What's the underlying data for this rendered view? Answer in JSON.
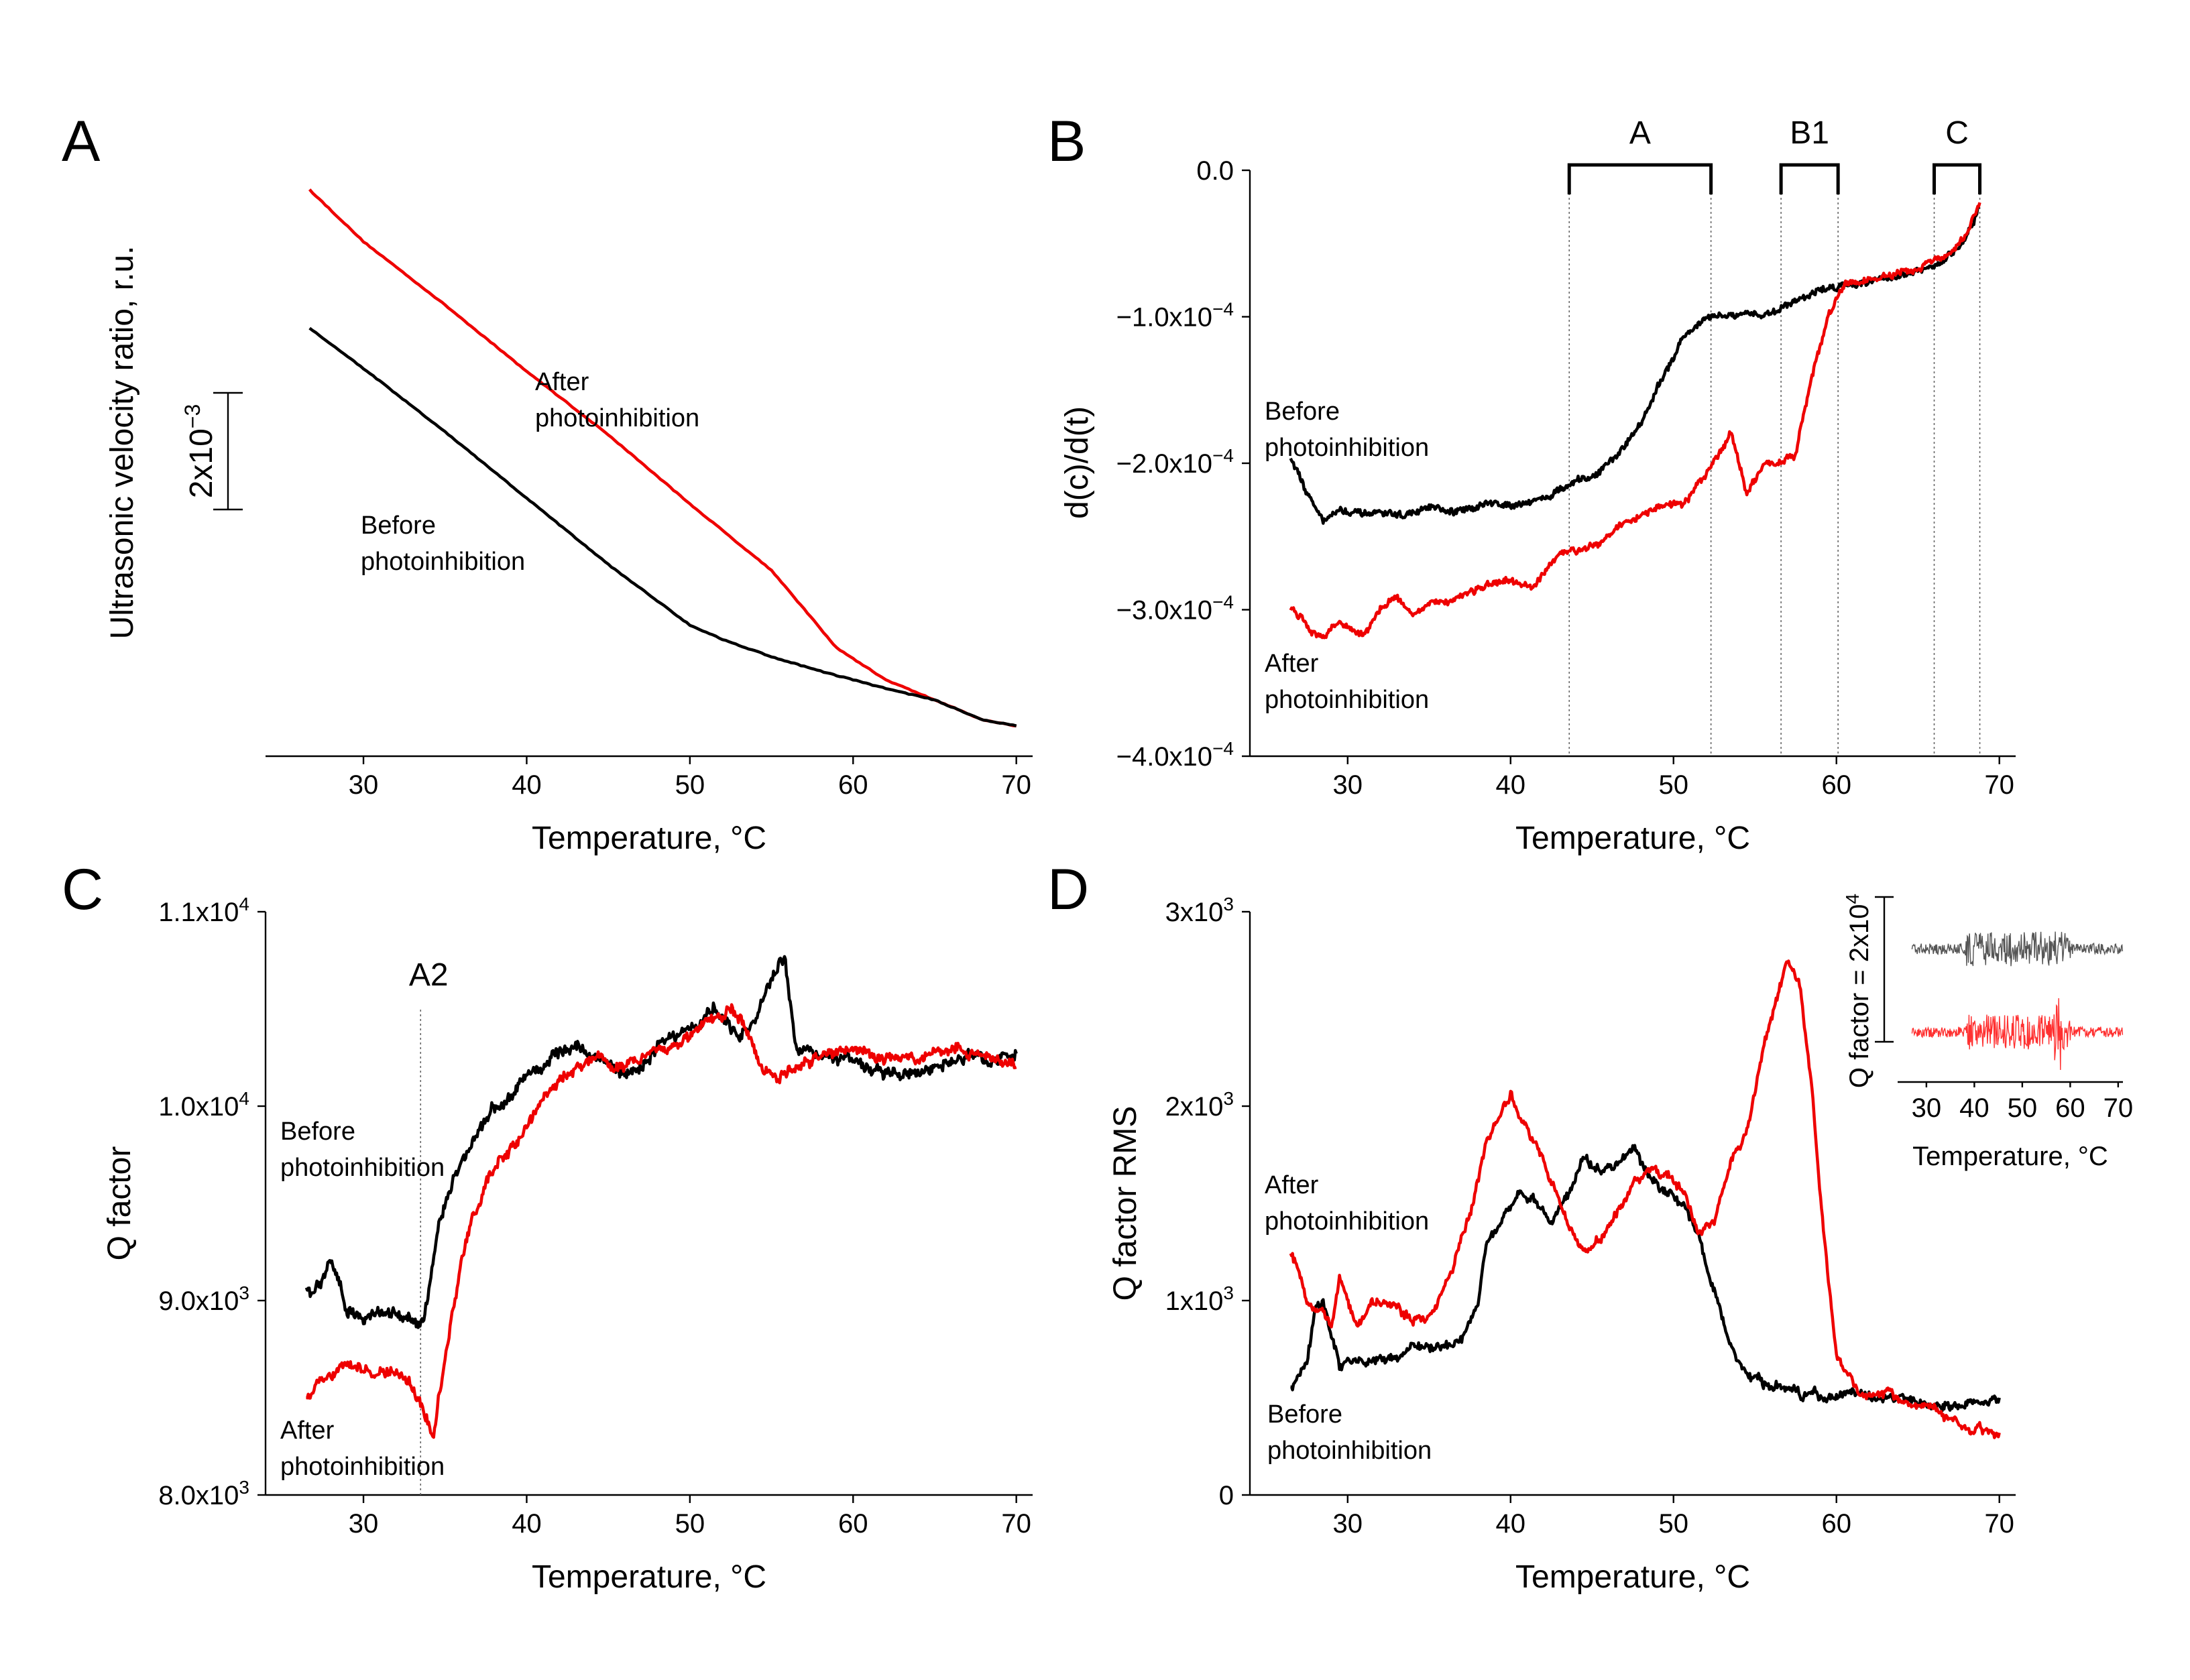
{
  "colors": {
    "before": "#000000",
    "after": "#ee0000",
    "before_inset": "#555555",
    "after_inset": "#ff3030"
  },
  "chart_data": [
    {
      "panel": "A",
      "type": "line",
      "xlabel": "Temperature, °C",
      "ylabel": "Ultrasonic velocity ratio, r.u.",
      "xlim": [
        24,
        71
      ],
      "ylim": [
        0,
        1
      ],
      "y_unit": "relative (scale bar 2x10-3)",
      "xticks": [
        "30",
        "40",
        "50",
        "60",
        "70"
      ],
      "scale_bar": {
        "base": "2x10",
        "exp": "−3"
      },
      "annotations": {
        "after": [
          "After",
          "photoinhibition"
        ],
        "before": [
          "Before",
          "photoinhibition"
        ]
      },
      "series": [
        {
          "key": "after",
          "x": [
            26.7,
            30,
            35,
            40,
            45,
            50,
            55,
            59,
            62,
            65,
            68,
            70
          ],
          "y": [
            0.95,
            0.86,
            0.75,
            0.635,
            0.525,
            0.405,
            0.29,
            0.155,
            0.1,
            0.065,
            0.03,
            0.02
          ]
        },
        {
          "key": "before",
          "x": [
            26.7,
            30,
            35,
            40,
            45,
            50,
            52,
            55,
            58,
            62,
            65,
            68,
            70
          ],
          "y": [
            0.71,
            0.64,
            0.53,
            0.415,
            0.3,
            0.195,
            0.17,
            0.14,
            0.115,
            0.085,
            0.065,
            0.03,
            0.02
          ]
        }
      ]
    },
    {
      "panel": "B",
      "type": "line",
      "xlabel": "Temperature, °C",
      "ylabel": "d(c)/d(t)",
      "xlim": [
        24,
        71
      ],
      "ylim": [
        -0.0004,
        0
      ],
      "xticks": [
        "30",
        "40",
        "50",
        "60",
        "70"
      ],
      "yticks": [
        {
          "value": 0,
          "base": "0.0",
          "exp": ""
        },
        {
          "value": -0.0001,
          "base": "−1.0x10",
          "exp": "−4"
        },
        {
          "value": -0.0002,
          "base": "−2.0x10",
          "exp": "−4"
        },
        {
          "value": -0.0003,
          "base": "−3.0x10",
          "exp": "−4"
        },
        {
          "value": -0.0004,
          "base": "−4.0x10",
          "exp": "−4"
        }
      ],
      "regions": [
        {
          "label": "A",
          "from": 43.6,
          "to": 52.3
        },
        {
          "label": "B1",
          "from": 56.6,
          "to": 60.1
        },
        {
          "label": "C",
          "from": 66.0,
          "to": 68.8
        }
      ],
      "annotations": {
        "before": [
          "Before",
          "photoinhibition"
        ],
        "after": [
          "After",
          "photoinhibition"
        ]
      },
      "series": [
        {
          "key": "before",
          "x": [
            26.5,
            27.5,
            28.5,
            29.5,
            31,
            32,
            33.5,
            35,
            36.5,
            38,
            39.5,
            41,
            42.5,
            43.6,
            45,
            46.5,
            47.5,
            48.5,
            49.5,
            50.5,
            51.5,
            52.5,
            54,
            55.5,
            56.5,
            57.5,
            59,
            60.5,
            62,
            63.5,
            65,
            66,
            67,
            68,
            68.8
          ],
          "y": [
            -0.000195,
            -0.00022,
            -0.000238,
            -0.000232,
            -0.000236,
            -0.000234,
            -0.000236,
            -0.00023,
            -0.000235,
            -0.000228,
            -0.000228,
            -0.000226,
            -0.000222,
            -0.000215,
            -0.00021,
            -0.000195,
            -0.00018,
            -0.000162,
            -0.000138,
            -0.000115,
            -0.000105,
            -0.0001,
            -0.0001,
            -9.8e-05,
            -9.5e-05,
            -8.8e-05,
            -8.2e-05,
            -7.8e-05,
            -7.5e-05,
            -7.2e-05,
            -7e-05,
            -6.6e-05,
            -5.8e-05,
            -4.5e-05,
            -2.5e-05
          ]
        },
        {
          "key": "after",
          "x": [
            26.5,
            27.5,
            28.5,
            29.5,
            31,
            32,
            33,
            34,
            35,
            36.5,
            38,
            39,
            40,
            41.5,
            42.5,
            43.6,
            45,
            46.5,
            48,
            49.5,
            50.5,
            52,
            53.5,
            54.5,
            55.5,
            56.5,
            57.5,
            58.5,
            59.5,
            60.5,
            62,
            63.5,
            65,
            66,
            67,
            68,
            68.8
          ],
          "y": [
            -0.000298,
            -0.000312,
            -0.000318,
            -0.000308,
            -0.000318,
            -0.0003,
            -0.00029,
            -0.000303,
            -0.000298,
            -0.000292,
            -0.000285,
            -0.000283,
            -0.000282,
            -0.000285,
            -0.000268,
            -0.00026,
            -0.000255,
            -0.000245,
            -0.000235,
            -0.000228,
            -0.00023,
            -0.000208,
            -0.000178,
            -0.00022,
            -0.000203,
            -0.000198,
            -0.000195,
            -0.00014,
            -0.0001,
            -7.8e-05,
            -7.5e-05,
            -7.2e-05,
            -6.8e-05,
            -6.2e-05,
            -5.8e-05,
            -4.5e-05,
            -2.2e-05
          ]
        }
      ]
    },
    {
      "panel": "C",
      "type": "line",
      "xlabel": "Temperature, °C",
      "ylabel": "Q factor",
      "xlim": [
        24,
        71
      ],
      "ylim": [
        8000,
        11000
      ],
      "xticks": [
        "30",
        "40",
        "50",
        "60",
        "70"
      ],
      "yticks": [
        {
          "value": 11000,
          "base": "1.1x10",
          "exp": "4"
        },
        {
          "value": 10000,
          "base": "1.0x10",
          "exp": "4"
        },
        {
          "value": 9000,
          "base": "9.0x10",
          "exp": "3"
        },
        {
          "value": 8000,
          "base": "8.0x10",
          "exp": "3"
        }
      ],
      "marker": {
        "label": "A2",
        "x": 33.5
      },
      "annotations": {
        "before": [
          "Before",
          "photoinhibition"
        ],
        "after": [
          "After",
          "photoinhibition"
        ]
      },
      "series": [
        {
          "key": "before",
          "x": [
            26.5,
            27.5,
            28,
            29,
            30,
            31,
            32,
            33,
            33.7,
            34.5,
            35.5,
            36.5,
            37.5,
            39,
            40,
            41.5,
            43,
            44.5,
            46,
            47,
            48.5,
            50,
            51.5,
            53,
            54,
            55,
            55.8,
            56.5,
            57.5,
            59,
            61,
            63,
            65,
            67,
            69,
            70
          ],
          "y": [
            9050,
            9100,
            9200,
            8950,
            8920,
            8950,
            8920,
            8900,
            8920,
            9350,
            9600,
            9800,
            9950,
            10050,
            10150,
            10250,
            10300,
            10250,
            10150,
            10200,
            10350,
            10400,
            10500,
            10350,
            10450,
            10650,
            10750,
            10300,
            10300,
            10250,
            10200,
            10150,
            10200,
            10250,
            10250,
            10270
          ]
        },
        {
          "key": "after",
          "x": [
            26.5,
            27.5,
            28.5,
            29.5,
            30.5,
            31.5,
            32.5,
            33.5,
            34.3,
            35,
            35.8,
            36.5,
            37.5,
            38.5,
            40,
            41.5,
            43,
            44.5,
            46,
            48,
            50,
            51.5,
            52.5,
            53.5,
            54.5,
            55.5,
            56.5,
            58,
            60,
            62,
            64,
            66,
            68,
            70
          ],
          "y": [
            8500,
            8600,
            8650,
            8650,
            8620,
            8640,
            8600,
            8500,
            8300,
            8700,
            9100,
            9400,
            9600,
            9700,
            9900,
            10100,
            10200,
            10250,
            10200,
            10300,
            10350,
            10450,
            10500,
            10400,
            10200,
            10150,
            10200,
            10250,
            10300,
            10250,
            10250,
            10300,
            10250,
            10200
          ]
        }
      ]
    },
    {
      "panel": "D",
      "type": "line",
      "xlabel": "Temperature, °C",
      "ylabel": "Q factor RMS",
      "xlim": [
        24,
        71
      ],
      "ylim": [
        0,
        3000
      ],
      "xticks": [
        "30",
        "40",
        "50",
        "60",
        "70"
      ],
      "yticks": [
        {
          "value": 3000,
          "base": "3x10",
          "exp": "3"
        },
        {
          "value": 2000,
          "base": "2x10",
          "exp": "3"
        },
        {
          "value": 1000,
          "base": "1x10",
          "exp": "3"
        },
        {
          "value": 0,
          "base": "0",
          "exp": ""
        }
      ],
      "annotations": {
        "after": [
          "After",
          "photoinhibition"
        ],
        "before": [
          "Before",
          "photoinhibition"
        ]
      },
      "series": [
        {
          "key": "before",
          "x": [
            26.5,
            27.5,
            28,
            28.5,
            29,
            29.5,
            30,
            31,
            32,
            33,
            34,
            35,
            36,
            37,
            38,
            38.5,
            39.5,
            40.5,
            41.5,
            42.5,
            43.5,
            44.5,
            45.5,
            46.5,
            47.5,
            48.5,
            49.5,
            50.5,
            51.5,
            52.5,
            53.5,
            54.5,
            56,
            58,
            60,
            62,
            64,
            66,
            68,
            70
          ],
          "y": [
            550,
            700,
            950,
            1000,
            800,
            650,
            700,
            680,
            720,
            700,
            750,
            760,
            780,
            820,
            1000,
            1300,
            1450,
            1550,
            1500,
            1400,
            1550,
            1750,
            1650,
            1700,
            1800,
            1650,
            1550,
            1500,
            1350,
            1050,
            750,
            600,
            550,
            520,
            500,
            520,
            480,
            470,
            460,
            500
          ]
        },
        {
          "key": "after",
          "x": [
            26.5,
            27.5,
            28.5,
            29,
            29.5,
            30.5,
            31.5,
            33,
            34.5,
            35.5,
            36.5,
            37.5,
            38.5,
            39.5,
            40,
            40.5,
            41.5,
            42.5,
            43.5,
            44.5,
            45.5,
            46.5,
            47.5,
            48.5,
            49.5,
            50.5,
            51.5,
            52.5,
            53.5,
            54.5,
            55.5,
            56.3,
            57,
            57.8,
            58.5,
            59.2,
            60,
            61,
            62.5,
            64,
            66,
            68,
            70
          ],
          "y": [
            1250,
            1000,
            950,
            850,
            1100,
            900,
            1000,
            950,
            900,
            1000,
            1200,
            1450,
            1800,
            2000,
            2080,
            1950,
            1800,
            1600,
            1400,
            1250,
            1300,
            1450,
            1600,
            1650,
            1650,
            1600,
            1350,
            1400,
            1700,
            1850,
            2300,
            2550,
            2750,
            2600,
            2100,
            1350,
            700,
            550,
            500,
            500,
            450,
            350,
            320
          ]
        }
      ],
      "inset": {
        "xlabel": "Temperature, °C",
        "ylabel": "Q factor = 2x10",
        "ylabel_exp": "4",
        "xlim": [
          24,
          71
        ],
        "xticks": [
          "30",
          "40",
          "50",
          "60",
          "70"
        ],
        "series": [
          {
            "key": "before_inset",
            "level": 0.72
          },
          {
            "key": "after_inset",
            "level": 0.27
          }
        ]
      }
    }
  ]
}
